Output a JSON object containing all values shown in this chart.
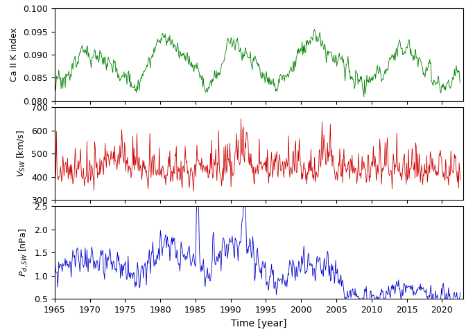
{
  "panels": [
    {
      "ylabel": "Ca II K index",
      "color": "#008000",
      "ylim": [
        0.08,
        0.1
      ],
      "yticks": [
        0.08,
        0.085,
        0.09,
        0.095,
        0.1
      ]
    },
    {
      "ylabel": "$V_{SW}$ [km/s]",
      "color": "#cc0000",
      "ylim": [
        300,
        700
      ],
      "yticks": [
        300,
        400,
        500,
        600,
        700
      ]
    },
    {
      "ylabel": "$P_{d,SW}$ [nPa]",
      "color": "#0000cc",
      "ylim": [
        0.5,
        2.5
      ],
      "yticks": [
        0.5,
        1.0,
        1.5,
        2.0,
        2.5
      ]
    }
  ],
  "xlabel": "Time [year]",
  "xmin": 1965,
  "xmax": 2023,
  "xticks": [
    1965,
    1970,
    1975,
    1980,
    1985,
    1990,
    1995,
    2000,
    2005,
    2010,
    2015,
    2020
  ]
}
